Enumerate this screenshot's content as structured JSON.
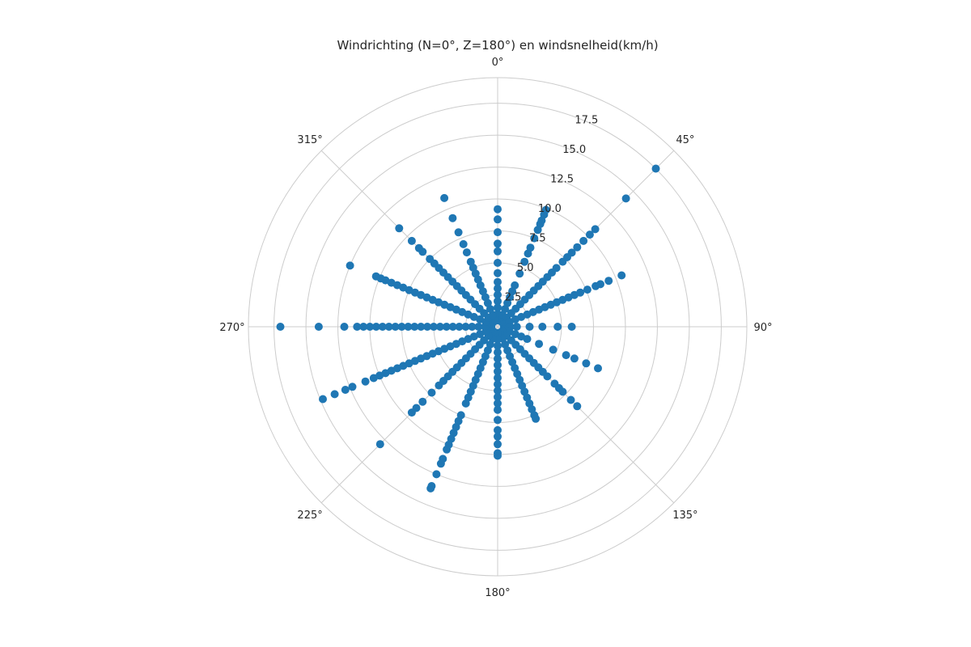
{
  "chart_data": {
    "type": "scatter",
    "projection": "polar",
    "title": "Windrichting (N=0°, Z=180°) en windsnelheid(km/h)",
    "theta_zero": "N",
    "theta_direction": "clockwise",
    "rlim": [
      0,
      19.5
    ],
    "r_ticks": [
      2.5,
      5.0,
      7.5,
      10.0,
      12.5,
      15.0,
      17.5
    ],
    "r_tick_labels": [
      "2.5",
      "5.0",
      "7.5",
      "10.0",
      "12.5",
      "15.0",
      "17.5"
    ],
    "theta_ticks": [
      0,
      45,
      90,
      135,
      180,
      225,
      270,
      315
    ],
    "theta_tick_labels": [
      "0°",
      "45°",
      "90°",
      "135°",
      "180°",
      "225°",
      "270°",
      "315°"
    ],
    "grid": true,
    "color": "#1f77b4",
    "series": [
      {
        "points": [
          {
            "theta": 0,
            "r": [
              0.5,
              1.0,
              1.5,
              2.0,
              2.5,
              3.0,
              3.5,
              4.2,
              5.0,
              5.9,
              6.5,
              7.4,
              8.4,
              9.2
            ]
          },
          {
            "theta": 22.5,
            "r": [
              0.5,
              1.0,
              1.5,
              2.0,
              2.5,
              3.0,
              3.5,
              4.5,
              5.5,
              6.2,
              6.7,
              7.5,
              8.2,
              8.7,
              9.0,
              9.5,
              9.9
            ]
          },
          {
            "theta": 45,
            "r": [
              0.5,
              1.0,
              1.5,
              2.0,
              2.5,
              3.0,
              3.5,
              4.0,
              4.5,
              5.0,
              5.5,
              6.0,
              6.5,
              7.2,
              7.7,
              8.2,
              8.8,
              9.5,
              10.2,
              10.8,
              14.2,
              17.5
            ]
          },
          {
            "theta": 67.5,
            "r": [
              0.5,
              1.0,
              1.5,
              2.0,
              2.5,
              3.0,
              3.5,
              4.0,
              4.5,
              5.0,
              5.5,
              6.0,
              6.5,
              7.0,
              7.6,
              8.3,
              8.7,
              9.4,
              10.5
            ]
          },
          {
            "theta": 90,
            "r": [
              0.5,
              1.0,
              1.5,
              2.5,
              3.5,
              4.7,
              5.8
            ]
          },
          {
            "theta": 112.5,
            "r": [
              0.5,
              1.0,
              1.5,
              2.0,
              2.5,
              3.5,
              4.7,
              5.8,
              6.5,
              7.5,
              8.5
            ]
          },
          {
            "theta": 135,
            "r": [
              0.5,
              1.0,
              1.5,
              2.0,
              2.5,
              3.0,
              3.5,
              4.0,
              4.5,
              5.0,
              5.5,
              6.3,
              6.8,
              7.2,
              8.1,
              8.8
            ]
          },
          {
            "theta": 157.5,
            "r": [
              0.5,
              1.0,
              1.5,
              2.0,
              2.5,
              3.0,
              3.5,
              4.0,
              4.5,
              5.0,
              5.5,
              6.0,
              6.5,
              7.0,
              7.5,
              7.8
            ]
          },
          {
            "theta": 180,
            "r": [
              0.5,
              1.0,
              1.5,
              2.0,
              2.5,
              3.0,
              3.5,
              4.0,
              4.5,
              5.0,
              5.5,
              6.0,
              6.5,
              7.3,
              8.1,
              8.6,
              9.2,
              9.9,
              10.1
            ]
          },
          {
            "theta": 202.5,
            "r": [
              0.5,
              1.0,
              1.5,
              2.0,
              2.5,
              3.0,
              3.5,
              4.0,
              4.5,
              5.0,
              5.5,
              6.0,
              6.5,
              7.5,
              8.0,
              8.5,
              9.0,
              9.5,
              10.0,
              10.4,
              11.2,
              11.6,
              12.5,
              13.5,
              13.7
            ]
          },
          {
            "theta": 225,
            "r": [
              0.5,
              1.0,
              1.5,
              2.0,
              2.5,
              3.0,
              3.5,
              4.0,
              4.5,
              5.0,
              5.5,
              6.0,
              6.5,
              7.3,
              8.3,
              9.0,
              9.5,
              13.0
            ]
          },
          {
            "theta": 247.5,
            "r": [
              0.5,
              1.0,
              1.5,
              2.0,
              2.5,
              3.0,
              3.5,
              4.0,
              4.5,
              5.0,
              5.5,
              6.0,
              6.5,
              7.0,
              7.5,
              8.0,
              8.5,
              9.0,
              9.5,
              10.0,
              10.5,
              11.2,
              12.3,
              12.9,
              13.8,
              14.8
            ]
          },
          {
            "theta": 270,
            "r": [
              0.5,
              1.0,
              1.5,
              2.0,
              2.5,
              3.0,
              3.5,
              4.0,
              4.5,
              5.0,
              5.5,
              6.0,
              6.5,
              7.0,
              7.5,
              8.0,
              8.5,
              9.0,
              9.5,
              10.0,
              10.5,
              11.0,
              12.0,
              14.0,
              17.0
            ]
          },
          {
            "theta": 292.5,
            "r": [
              0.5,
              1.0,
              1.5,
              2.0,
              2.5,
              3.0,
              3.5,
              4.0,
              4.5,
              5.0,
              5.5,
              6.0,
              6.5,
              7.0,
              7.5,
              8.0,
              8.5,
              9.0,
              9.5,
              9.9,
              10.3,
              12.5
            ]
          },
          {
            "theta": 315,
            "r": [
              0.5,
              1.0,
              1.5,
              2.0,
              2.5,
              3.0,
              3.5,
              4.0,
              4.5,
              5.0,
              5.5,
              6.0,
              6.5,
              7.0,
              7.5,
              8.3,
              8.7,
              9.5,
              10.9
            ]
          },
          {
            "theta": 337.5,
            "r": [
              0.5,
              1.0,
              1.5,
              2.0,
              2.5,
              3.0,
              3.5,
              4.0,
              4.5,
              5.0,
              5.5,
              6.3,
              7.0,
              8.0,
              9.2,
              10.9
            ]
          }
        ]
      }
    ]
  }
}
